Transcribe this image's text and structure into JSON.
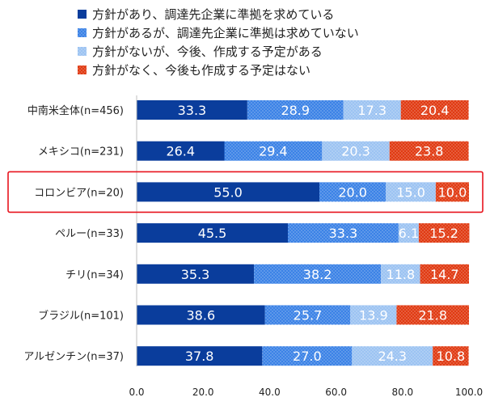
{
  "chart_data": {
    "type": "bar",
    "stacked": true,
    "orientation": "horizontal",
    "title": "",
    "xlabel": "",
    "ylabel": "",
    "xlim": [
      0,
      100
    ],
    "x_ticks": [
      "0.0",
      "20.0",
      "40.0",
      "60.0",
      "80.0",
      "100.0"
    ],
    "grid": false,
    "legend_position": "top",
    "highlighted_category": "コロンビア(n=20)",
    "highlight_color": "#e8141e",
    "categories": [
      "中南米全体(n=456)",
      "メキシコ(n=231)",
      "コロンビア(n=20)",
      "ペルー(n=33)",
      "チリ(n=34)",
      "ブラジル(n=101)",
      "アルゼンチン(n=37)"
    ],
    "series": [
      {
        "name": "方針があり、調達先企業に準拠を求めている",
        "color": "#0a3d9c",
        "pattern": "solid",
        "values": [
          33.3,
          26.4,
          55.0,
          45.5,
          35.3,
          38.6,
          37.8
        ]
      },
      {
        "name": "方針があるが、調達先企業に準拠は求めていない",
        "color": "#3b82e6",
        "pattern": "dots",
        "values": [
          28.9,
          29.4,
          20.0,
          33.3,
          38.2,
          25.7,
          27.0
        ]
      },
      {
        "name": "方針がないが、今後、作成する予定がある",
        "color": "#9cc3f2",
        "pattern": "dots",
        "values": [
          17.3,
          20.3,
          15.0,
          6.1,
          11.8,
          13.9,
          24.3
        ]
      },
      {
        "name": "方針がなく、今後も作成する予定はない",
        "color": "#e03a12",
        "pattern": "dots",
        "values": [
          20.4,
          23.8,
          10.0,
          15.2,
          14.7,
          21.8,
          10.8
        ]
      }
    ]
  }
}
